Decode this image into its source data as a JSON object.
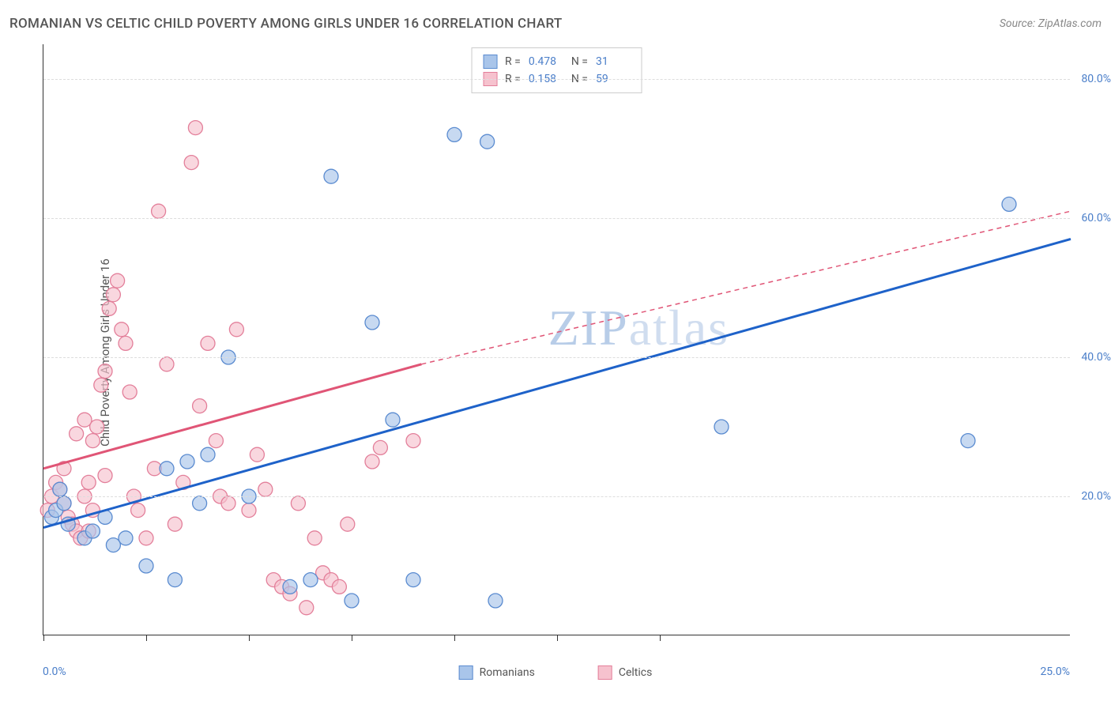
{
  "title": "ROMANIAN VS CELTIC CHILD POVERTY AMONG GIRLS UNDER 16 CORRELATION CHART",
  "source": "Source: ZipAtlas.com",
  "yaxis_title": "Child Poverty Among Girls Under 16",
  "watermark_a": "ZIP",
  "watermark_b": "atlas",
  "xlim": [
    0,
    25
  ],
  "ylim": [
    0,
    85
  ],
  "xtick_positions": [
    0,
    2.5,
    5,
    7.5,
    10,
    12.5,
    15
  ],
  "ytick_values": [
    20,
    40,
    60,
    80
  ],
  "ytick_labels": [
    "20.0%",
    "40.0%",
    "60.0%",
    "80.0%"
  ],
  "xlabel_min": "0.0%",
  "xlabel_max": "25.0%",
  "colors": {
    "blue_fill": "#a9c5ea",
    "blue_stroke": "#5a8bd0",
    "pink_fill": "#f6c2ce",
    "pink_stroke": "#e37f9a",
    "blue_line": "#1e62c9",
    "pink_line": "#e05576",
    "axis_label": "#4a7ec9",
    "grid": "#dddddd"
  },
  "stats": [
    {
      "r_label": "R =",
      "r_value": "0.478",
      "n_label": "N =",
      "n_value": "31",
      "swatch_fill": "#a9c5ea",
      "swatch_stroke": "#5a8bd0"
    },
    {
      "r_label": "R =",
      "r_value": "0.158",
      "n_label": "N =",
      "n_value": "59",
      "swatch_fill": "#f6c2ce",
      "swatch_stroke": "#e37f9a"
    }
  ],
  "legend": [
    {
      "label": "Romanians",
      "fill": "#a9c5ea",
      "stroke": "#5a8bd0"
    },
    {
      "label": "Celtics",
      "fill": "#f6c2ce",
      "stroke": "#e37f9a"
    }
  ],
  "series": {
    "romanians": {
      "marker_radius": 9,
      "points": [
        [
          0.2,
          17
        ],
        [
          0.3,
          18
        ],
        [
          0.4,
          21
        ],
        [
          0.5,
          19
        ],
        [
          0.6,
          16
        ],
        [
          1.0,
          14
        ],
        [
          1.2,
          15
        ],
        [
          1.5,
          17
        ],
        [
          1.7,
          13
        ],
        [
          2.0,
          14
        ],
        [
          2.5,
          10
        ],
        [
          3.0,
          24
        ],
        [
          3.2,
          8
        ],
        [
          3.5,
          25
        ],
        [
          3.8,
          19
        ],
        [
          4.0,
          26
        ],
        [
          4.5,
          40
        ],
        [
          5.0,
          20
        ],
        [
          6.0,
          7
        ],
        [
          6.5,
          8
        ],
        [
          7.0,
          66
        ],
        [
          7.5,
          5
        ],
        [
          8.0,
          45
        ],
        [
          8.5,
          31
        ],
        [
          9.0,
          8
        ],
        [
          10.0,
          72
        ],
        [
          10.8,
          71
        ],
        [
          11.0,
          5
        ],
        [
          16.5,
          30
        ],
        [
          22.5,
          28
        ],
        [
          23.5,
          62
        ]
      ],
      "trend": {
        "x1": 0,
        "y1": 15.5,
        "x2": 25,
        "y2": 57
      }
    },
    "celtics": {
      "marker_radius": 9,
      "points": [
        [
          0.1,
          18
        ],
        [
          0.2,
          20
        ],
        [
          0.3,
          22
        ],
        [
          0.4,
          21
        ],
        [
          0.5,
          19
        ],
        [
          0.6,
          17
        ],
        [
          0.7,
          16
        ],
        [
          0.8,
          15
        ],
        [
          0.9,
          14
        ],
        [
          1.0,
          20
        ],
        [
          1.1,
          22
        ],
        [
          1.2,
          28
        ],
        [
          1.3,
          30
        ],
        [
          1.4,
          36
        ],
        [
          1.5,
          38
        ],
        [
          1.6,
          47
        ],
        [
          1.7,
          49
        ],
        [
          1.8,
          51
        ],
        [
          1.9,
          44
        ],
        [
          2.0,
          42
        ],
        [
          2.1,
          35
        ],
        [
          2.2,
          20
        ],
        [
          2.3,
          18
        ],
        [
          2.5,
          14
        ],
        [
          2.7,
          24
        ],
        [
          2.8,
          61
        ],
        [
          3.0,
          39
        ],
        [
          3.2,
          16
        ],
        [
          3.4,
          22
        ],
        [
          3.6,
          68
        ],
        [
          3.7,
          73
        ],
        [
          3.8,
          33
        ],
        [
          4.0,
          42
        ],
        [
          4.2,
          28
        ],
        [
          4.3,
          20
        ],
        [
          4.5,
          19
        ],
        [
          4.7,
          44
        ],
        [
          5.0,
          18
        ],
        [
          5.2,
          26
        ],
        [
          5.4,
          21
        ],
        [
          5.6,
          8
        ],
        [
          5.8,
          7
        ],
        [
          6.0,
          6
        ],
        [
          6.2,
          19
        ],
        [
          6.4,
          4
        ],
        [
          6.6,
          14
        ],
        [
          6.8,
          9
        ],
        [
          7.0,
          8
        ],
        [
          7.2,
          7
        ],
        [
          7.4,
          16
        ],
        [
          8.0,
          25
        ],
        [
          8.2,
          27
        ],
        [
          9.0,
          28
        ],
        [
          0.5,
          24
        ],
        [
          0.8,
          29
        ],
        [
          1.0,
          31
        ],
        [
          1.2,
          18
        ],
        [
          1.5,
          23
        ],
        [
          1.1,
          15
        ]
      ],
      "trend_solid": {
        "x1": 0,
        "y1": 24,
        "x2": 9.2,
        "y2": 39
      },
      "trend_dash": {
        "x1": 9.2,
        "y1": 39,
        "x2": 25,
        "y2": 61
      }
    }
  }
}
